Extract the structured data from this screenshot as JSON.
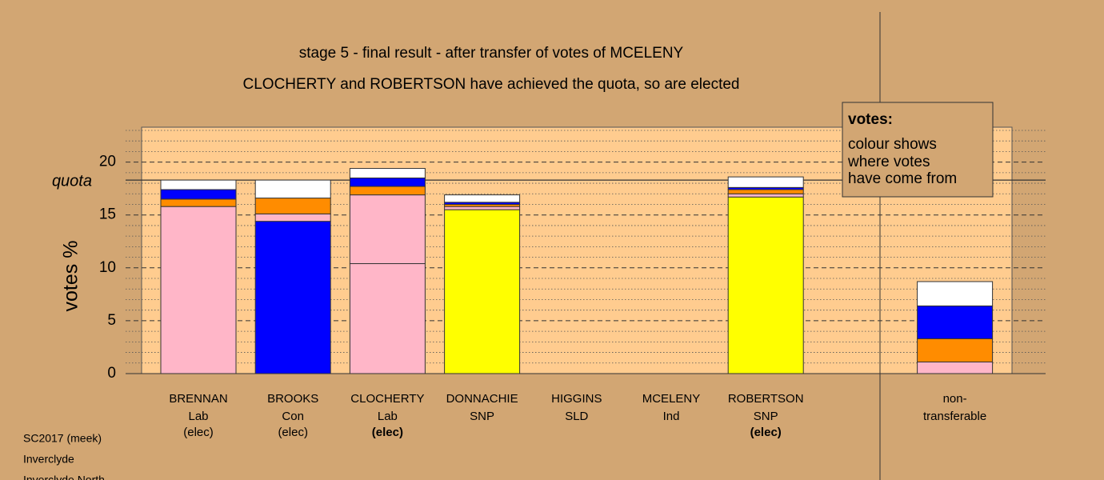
{
  "chart_data": {
    "type": "stacked-bar",
    "title": "stage 5 - final result - after transfer of votes of MCELENY",
    "subtitle": "CLOCHERTY and ROBERTSON have achieved the quota, so are elected",
    "y_label": "votes %",
    "ylim": [
      0,
      23.3
    ],
    "yticks": [
      0,
      5,
      10,
      15,
      20
    ],
    "minor_yticks": [
      1,
      2,
      3,
      4,
      6,
      7,
      8,
      9,
      11,
      12,
      13,
      14,
      16,
      17,
      18,
      19,
      21,
      22,
      23
    ],
    "quota": {
      "label": "quota",
      "value": 18.3
    },
    "categories": [
      {
        "name": "BRENNAN",
        "party": "Lab",
        "status": "(elec)"
      },
      {
        "name": "BROOKS",
        "party": "Con",
        "status": "(elec)"
      },
      {
        "name": "CLOCHERTY",
        "party": "Lab",
        "status": "(elec)",
        "bold_status": true
      },
      {
        "name": "DONNACHIE",
        "party": "SNP"
      },
      {
        "name": "HIGGINS",
        "party": "SLD"
      },
      {
        "name": "MCELENY",
        "party": "Ind"
      },
      {
        "name": "ROBERTSON",
        "party": "SNP",
        "status": "(elec)",
        "bold_status": true
      },
      {
        "name": "non-",
        "party": "transferable"
      }
    ],
    "stacks": [
      [
        {
          "color": "#ffb6c8",
          "value": 15.8
        },
        {
          "color": "#ff8c00",
          "value": 0.7
        },
        {
          "color": "#0000ff",
          "value": 0.9
        },
        {
          "color": "#ffffff",
          "value": 0.9
        }
      ],
      [
        {
          "color": "#0000ff",
          "value": 14.4
        },
        {
          "color": "#ffb6c8",
          "value": 0.7
        },
        {
          "color": "#ff8c00",
          "value": 1.5
        },
        {
          "color": "#ffffff",
          "value": 1.7
        }
      ],
      [
        {
          "color": "#ffb6c8",
          "value": 10.4
        },
        {
          "color": "#ffb6c8",
          "value": 6.5
        },
        {
          "color": "#ff8c00",
          "value": 0.8
        },
        {
          "color": "#0000ff",
          "value": 0.8
        },
        {
          "color": "#ffffff",
          "value": 0.9
        }
      ],
      [
        {
          "color": "#ffff00",
          "value": 15.5
        },
        {
          "color": "#ffb6c8",
          "value": 0.3
        },
        {
          "color": "#ff8c00",
          "value": 0.2
        },
        {
          "color": "#0000ff",
          "value": 0.2
        },
        {
          "color": "#ffffff",
          "value": 0.7
        }
      ],
      [
        {
          "color": "#ffff00",
          "value": 0
        }
      ],
      [
        {
          "color": "#ffff00",
          "value": 0
        }
      ],
      [
        {
          "color": "#ffff00",
          "value": 16.7
        },
        {
          "color": "#ffb6c8",
          "value": 0.3
        },
        {
          "color": "#ff8c00",
          "value": 0.4
        },
        {
          "color": "#0000ff",
          "value": 0.2
        },
        {
          "color": "#ffffff",
          "value": 1.0
        }
      ],
      [
        {
          "color": "#ffb6c8",
          "value": 1.1
        },
        {
          "color": "#ff8c00",
          "value": 2.2
        },
        {
          "color": "#0000ff",
          "value": 3.1
        },
        {
          "color": "#ffffff",
          "value": 2.3
        }
      ]
    ],
    "legend": {
      "title": "votes:",
      "lines": [
        "colour shows",
        "where votes",
        "have come from"
      ]
    },
    "footer": [
      "SC2017 (meek)",
      "Inverclyde",
      "Inverclyde North"
    ]
  }
}
